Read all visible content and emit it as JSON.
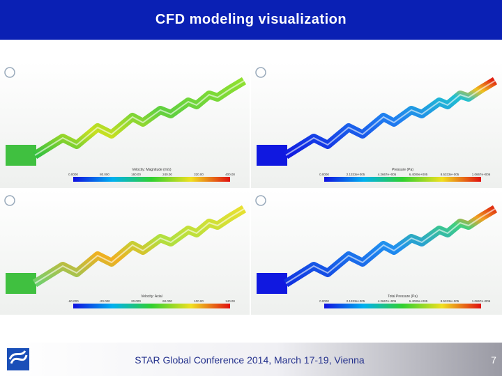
{
  "header": {
    "title": "CFD modeling visualization"
  },
  "panels": [
    {
      "legend_title": "Velocity: Magnitude (m/s)",
      "legend_ticks": [
        "0.0000",
        "80.000",
        "160.00",
        "240.00",
        "320.00",
        "400.00"
      ]
    },
    {
      "legend_title": "Pressure (Pa)",
      "legend_ticks": [
        "0.0000",
        "2.1333e+005",
        "4.2667e+005",
        "6.4000e+005",
        "8.5333e+005",
        "1.0667e+006"
      ]
    },
    {
      "legend_title": "Velocity: Axial",
      "legend_ticks": [
        "-60.000",
        "-20.000",
        "20.000",
        "60.000",
        "100.00",
        "140.00"
      ]
    },
    {
      "legend_title": "Total Pressure (Pa)",
      "legend_ticks": [
        "0.0000",
        "2.1333e+005",
        "4.2667e+005",
        "6.4000e+005",
        "8.5333e+005",
        "1.0667e+006"
      ]
    }
  ],
  "footer": {
    "text": "STAR Global Conference 2014, March 17-19, Vienna",
    "page": "7"
  }
}
